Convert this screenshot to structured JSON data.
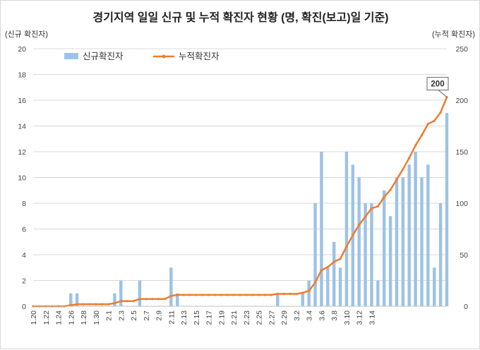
{
  "chart_data": {
    "type": "bar+line",
    "title": "경기지역 일일 신규 및 누적 확진자 현황 (명, 확진(보고)일 기준)",
    "left_unit_label": "(신규 확진자)",
    "right_unit_label": "(누적 확진자)",
    "left_axis": {
      "min": 0,
      "max": 20,
      "ticks": [
        "0",
        "2",
        "4",
        "6",
        "8",
        "10",
        "12",
        "14",
        "16",
        "18",
        "20"
      ]
    },
    "right_axis": {
      "min": 0,
      "max": 250,
      "ticks": [
        "0",
        "50",
        "100",
        "150",
        "200",
        "250"
      ]
    },
    "x_tick_labels": [
      "1.20",
      "1.22",
      "1.24",
      "1.26",
      "1.28",
      "1.30",
      "2.1",
      "2.3",
      "2.5",
      "2.7",
      "2.9",
      "2.11",
      "2.13",
      "2.15",
      "2.17",
      "2.19",
      "2.21",
      "2.23",
      "2.25",
      "2.27",
      "2.29",
      "3.2",
      "3.4",
      "3.6",
      "3.8",
      "3.10",
      "3.12",
      "3.14"
    ],
    "grid": true,
    "legend": {
      "position": "top-left",
      "entries": [
        "신규확진자",
        "누적확진자"
      ]
    },
    "callout": "200",
    "colors": {
      "bar": "#9dc3e6",
      "line": "#ed7d31",
      "callout_text": "#c00000"
    },
    "series": [
      {
        "name": "신규확진자",
        "type": "bar",
        "axis": "left",
        "values": [
          0,
          0,
          0,
          0,
          0,
          0,
          1,
          1,
          0,
          0,
          0,
          0,
          0,
          1,
          2,
          0,
          0,
          2,
          0,
          0,
          0,
          0,
          3,
          1,
          0,
          0,
          0,
          0,
          0,
          0,
          0,
          0,
          0,
          0,
          0,
          0,
          0,
          0,
          0,
          1,
          0,
          0,
          0,
          1,
          2,
          8,
          12,
          3,
          5,
          3,
          12,
          11,
          10,
          8,
          8,
          2,
          9,
          7,
          10,
          10,
          11,
          12,
          10,
          11,
          3,
          8,
          15
        ]
      },
      {
        "name": "누적확진자",
        "type": "line",
        "axis": "right",
        "values": [
          0,
          0,
          0,
          0,
          0,
          0,
          1,
          2,
          2,
          2,
          2,
          2,
          2,
          3,
          5,
          5,
          5,
          7,
          7,
          7,
          7,
          7,
          10,
          11,
          11,
          11,
          11,
          11,
          11,
          11,
          11,
          11,
          11,
          11,
          11,
          11,
          11,
          11,
          11,
          12,
          12,
          12,
          12,
          13,
          15,
          23,
          35,
          38,
          43,
          46,
          58,
          69,
          79,
          87,
          95,
          97,
          106,
          113,
          123,
          133,
          144,
          156,
          166,
          177,
          180,
          188,
          203
        ]
      }
    ]
  }
}
